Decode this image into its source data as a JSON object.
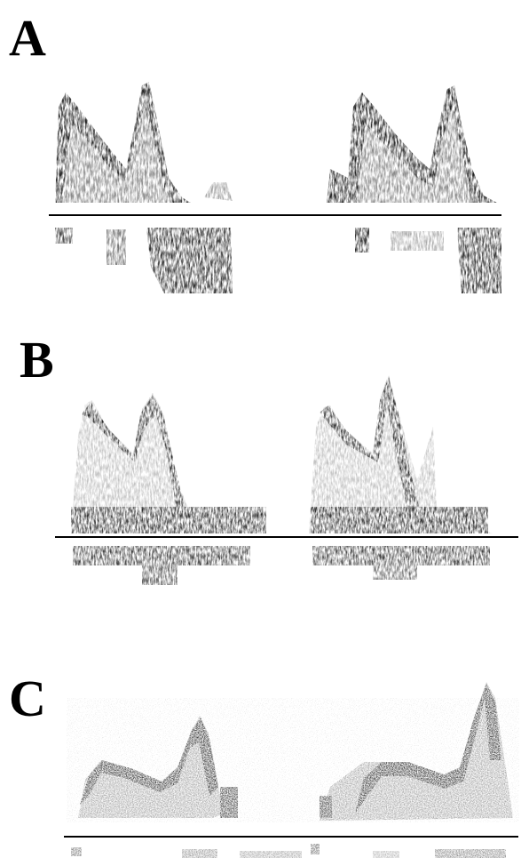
{
  "panels": [
    {
      "id": "A",
      "label": "A"
    },
    {
      "id": "B",
      "label": "B"
    },
    {
      "id": "C",
      "label": "C"
    }
  ]
}
